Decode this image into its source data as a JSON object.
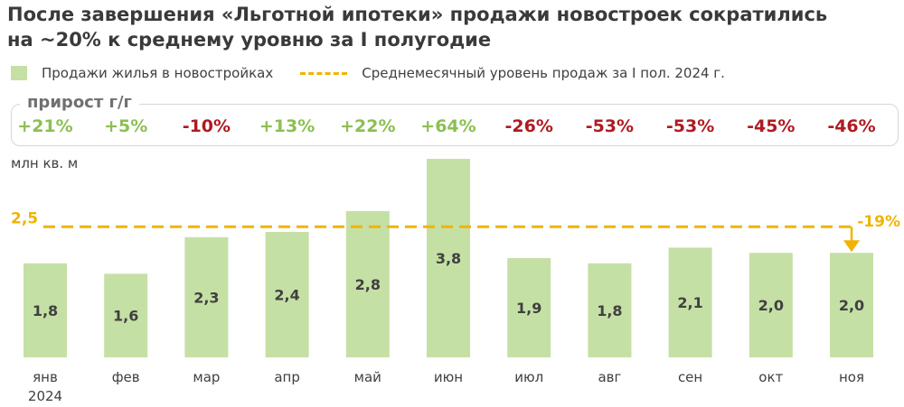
{
  "title_line1": "После завершения «Льготной ипотеки» продажи новостроек сократились",
  "title_line2": "на ~20% к среднему уровню за I полугодие",
  "legend": {
    "bars": "Продажи жилья в новостройках",
    "line": "Среднемесячный уровень продаж за I пол. 2024 г."
  },
  "growth_title": "прирост г/г",
  "unit_label": "млн кв. м",
  "colors": {
    "bar": "#c5e0a5",
    "avg_line": "#f0b400",
    "growth_positive": "#8cbf52",
    "growth_negative": "#b01a22"
  },
  "chart_data": {
    "type": "bar",
    "categories": [
      "янв",
      "фев",
      "мар",
      "апр",
      "май",
      "июн",
      "июл",
      "авг",
      "сен",
      "окт",
      "ноя"
    ],
    "category_sublabel": "2024",
    "values": [
      1.8,
      1.6,
      2.3,
      2.4,
      2.8,
      3.8,
      1.9,
      1.8,
      2.1,
      2.0,
      2.0
    ],
    "value_labels": [
      "1,8",
      "1,6",
      "2,3",
      "2,4",
      "2,8",
      "3,8",
      "1,9",
      "1,8",
      "2,1",
      "2,0",
      "2,0"
    ],
    "yoy_growth": [
      "+21%",
      "+5%",
      "-10%",
      "+13%",
      "+22%",
      "+64%",
      "-26%",
      "-53%",
      "-53%",
      "-45%",
      "-46%"
    ],
    "reference_line": {
      "value": 2.5,
      "label": "2,5"
    },
    "annotation": {
      "category": "ноя",
      "text": "-19%"
    },
    "ylabel": "млн кв. м",
    "ylim": [
      0,
      4
    ]
  }
}
